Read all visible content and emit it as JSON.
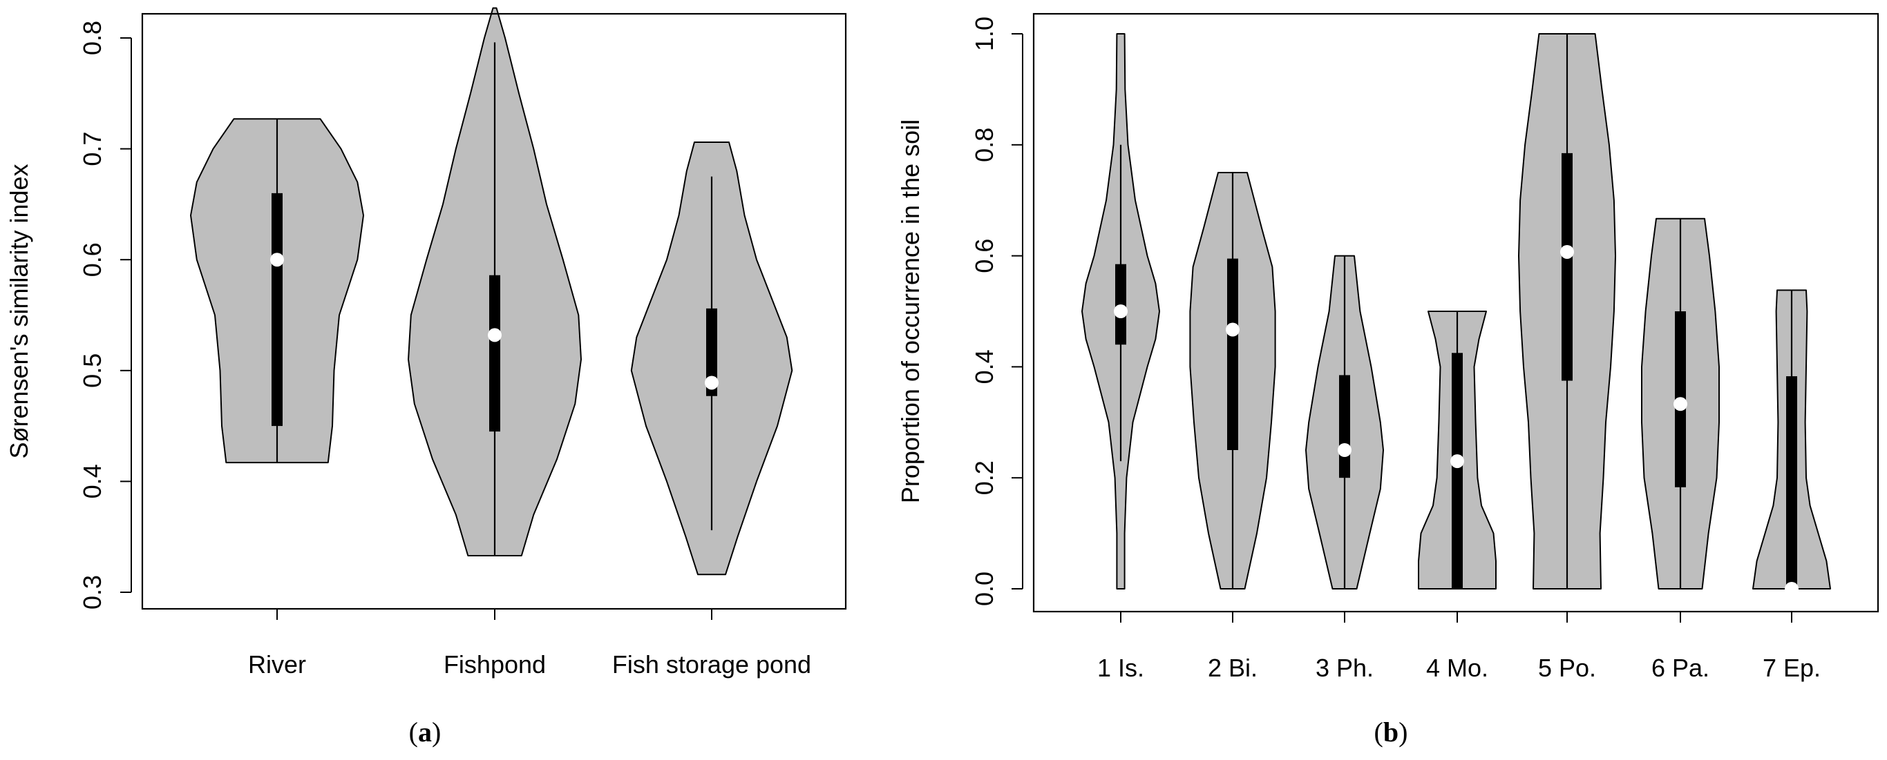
{
  "colors": {
    "violin_fill": "#bebebe",
    "outline": "#000000",
    "median_point": "#ffffff",
    "background": "#ffffff"
  },
  "chart_data": [
    {
      "type": "violin",
      "panel_caption": "(a)",
      "ylabel": "Sørensen's similarity index",
      "xlabel": "",
      "ylim": [
        0.3,
        0.8
      ],
      "yticks": [
        0.3,
        0.4,
        0.5,
        0.6,
        0.7,
        0.8
      ],
      "ytick_labels": [
        "0.3",
        "0.4",
        "0.5",
        "0.6",
        "0.7",
        "0.8"
      ],
      "categories": [
        "River",
        "Fishpond",
        "Fish storage pond"
      ],
      "grid": false,
      "series": [
        {
          "min": 0.417,
          "max": 0.727,
          "median": 0.6,
          "q1": 0.45,
          "q3": 0.66,
          "whisker_low": 0.417,
          "whisker_high": 0.727,
          "density": [
            [
              0.417,
              0.59
            ],
            [
              0.45,
              0.64
            ],
            [
              0.5,
              0.66
            ],
            [
              0.55,
              0.72
            ],
            [
              0.6,
              0.93
            ],
            [
              0.64,
              1.0
            ],
            [
              0.67,
              0.93
            ],
            [
              0.7,
              0.74
            ],
            [
              0.727,
              0.5
            ]
          ]
        },
        {
          "min": 0.333,
          "max": 0.827,
          "median": 0.532,
          "q1": 0.445,
          "q3": 0.586,
          "whisker_low": 0.333,
          "whisker_high": 0.796,
          "density": [
            [
              0.333,
              0.31
            ],
            [
              0.37,
              0.45
            ],
            [
              0.42,
              0.72
            ],
            [
              0.47,
              0.93
            ],
            [
              0.51,
              1.0
            ],
            [
              0.55,
              0.97
            ],
            [
              0.6,
              0.79
            ],
            [
              0.65,
              0.6
            ],
            [
              0.7,
              0.45
            ],
            [
              0.75,
              0.28
            ],
            [
              0.8,
              0.12
            ],
            [
              0.827,
              0.02
            ]
          ]
        },
        {
          "min": 0.316,
          "max": 0.706,
          "median": 0.489,
          "q1": 0.477,
          "q3": 0.556,
          "whisker_low": 0.356,
          "whisker_high": 0.675,
          "density": [
            [
              0.316,
              0.16
            ],
            [
              0.35,
              0.3
            ],
            [
              0.4,
              0.52
            ],
            [
              0.45,
              0.76
            ],
            [
              0.5,
              0.93
            ],
            [
              0.53,
              0.87
            ],
            [
              0.56,
              0.72
            ],
            [
              0.6,
              0.52
            ],
            [
              0.64,
              0.38
            ],
            [
              0.68,
              0.29
            ],
            [
              0.706,
              0.2
            ]
          ]
        }
      ]
    },
    {
      "type": "violin",
      "panel_caption": "(b)",
      "ylabel": "Proportion of occurrence in the soil",
      "xlabel": "",
      "ylim": [
        0.0,
        1.0
      ],
      "yticks": [
        0.0,
        0.2,
        0.4,
        0.6,
        0.8,
        1.0
      ],
      "ytick_labels": [
        "0.0",
        "0.2",
        "0.4",
        "0.6",
        "0.8",
        "1.0"
      ],
      "categories": [
        "1 Is.",
        "2 Bi.",
        "3 Ph.",
        "4 Mo.",
        "5 Po.",
        "6 Pa.",
        "7 Ep."
      ],
      "grid": false,
      "series": [
        {
          "min": 0.0,
          "max": 1.0,
          "median": 0.5,
          "q1": 0.44,
          "q3": 0.585,
          "whisker_low": 0.23,
          "whisker_high": 0.8,
          "density": [
            [
              0.0,
              0.08
            ],
            [
              0.1,
              0.08
            ],
            [
              0.2,
              0.12
            ],
            [
              0.3,
              0.25
            ],
            [
              0.4,
              0.55
            ],
            [
              0.45,
              0.72
            ],
            [
              0.5,
              0.8
            ],
            [
              0.55,
              0.72
            ],
            [
              0.6,
              0.55
            ],
            [
              0.7,
              0.3
            ],
            [
              0.8,
              0.15
            ],
            [
              0.9,
              0.09
            ],
            [
              1.0,
              0.08
            ]
          ]
        },
        {
          "min": 0.0,
          "max": 0.75,
          "median": 0.467,
          "q1": 0.25,
          "q3": 0.595,
          "whisker_low": 0.0,
          "whisker_high": 0.75,
          "density": [
            [
              0.0,
              0.25
            ],
            [
              0.1,
              0.5
            ],
            [
              0.2,
              0.7
            ],
            [
              0.3,
              0.8
            ],
            [
              0.4,
              0.88
            ],
            [
              0.5,
              0.88
            ],
            [
              0.58,
              0.82
            ],
            [
              0.65,
              0.6
            ],
            [
              0.7,
              0.45
            ],
            [
              0.75,
              0.3
            ]
          ]
        },
        {
          "min": 0.0,
          "max": 0.6,
          "median": 0.25,
          "q1": 0.2,
          "q3": 0.385,
          "whisker_low": 0.0,
          "whisker_high": 0.6,
          "density": [
            [
              0.0,
              0.25
            ],
            [
              0.1,
              0.52
            ],
            [
              0.18,
              0.74
            ],
            [
              0.25,
              0.8
            ],
            [
              0.3,
              0.74
            ],
            [
              0.4,
              0.55
            ],
            [
              0.5,
              0.32
            ],
            [
              0.6,
              0.2
            ]
          ]
        },
        {
          "min": 0.0,
          "max": 0.5,
          "median": 0.23,
          "q1": 0.0,
          "q3": 0.425,
          "whisker_low": 0.0,
          "whisker_high": 0.5,
          "density": [
            [
              0.0,
              0.8
            ],
            [
              0.05,
              0.8
            ],
            [
              0.1,
              0.75
            ],
            [
              0.15,
              0.5
            ],
            [
              0.2,
              0.42
            ],
            [
              0.3,
              0.38
            ],
            [
              0.4,
              0.35
            ],
            [
              0.45,
              0.45
            ],
            [
              0.5,
              0.6
            ]
          ]
        },
        {
          "min": 0.0,
          "max": 1.0,
          "median": 0.607,
          "q1": 0.375,
          "q3": 0.785,
          "whisker_low": 0.0,
          "whisker_high": 1.0,
          "density": [
            [
              0.0,
              0.7
            ],
            [
              0.1,
              0.68
            ],
            [
              0.2,
              0.75
            ],
            [
              0.3,
              0.8
            ],
            [
              0.4,
              0.9
            ],
            [
              0.5,
              0.97
            ],
            [
              0.6,
              1.0
            ],
            [
              0.7,
              0.97
            ],
            [
              0.8,
              0.87
            ],
            [
              0.9,
              0.72
            ],
            [
              1.0,
              0.58
            ]
          ]
        },
        {
          "min": 0.0,
          "max": 0.667,
          "median": 0.333,
          "q1": 0.183,
          "q3": 0.5,
          "whisker_low": 0.0,
          "whisker_high": 0.667,
          "density": [
            [
              0.0,
              0.45
            ],
            [
              0.1,
              0.58
            ],
            [
              0.2,
              0.75
            ],
            [
              0.3,
              0.8
            ],
            [
              0.4,
              0.8
            ],
            [
              0.5,
              0.72
            ],
            [
              0.6,
              0.6
            ],
            [
              0.667,
              0.5
            ]
          ]
        },
        {
          "min": 0.0,
          "max": 0.538,
          "median": 0.0,
          "q1": 0.0,
          "q3": 0.383,
          "whisker_low": 0.0,
          "whisker_high": 0.538,
          "density": [
            [
              0.0,
              0.8
            ],
            [
              0.05,
              0.72
            ],
            [
              0.1,
              0.55
            ],
            [
              0.15,
              0.38
            ],
            [
              0.2,
              0.3
            ],
            [
              0.3,
              0.28
            ],
            [
              0.4,
              0.3
            ],
            [
              0.5,
              0.32
            ],
            [
              0.538,
              0.3
            ]
          ]
        }
      ]
    }
  ]
}
